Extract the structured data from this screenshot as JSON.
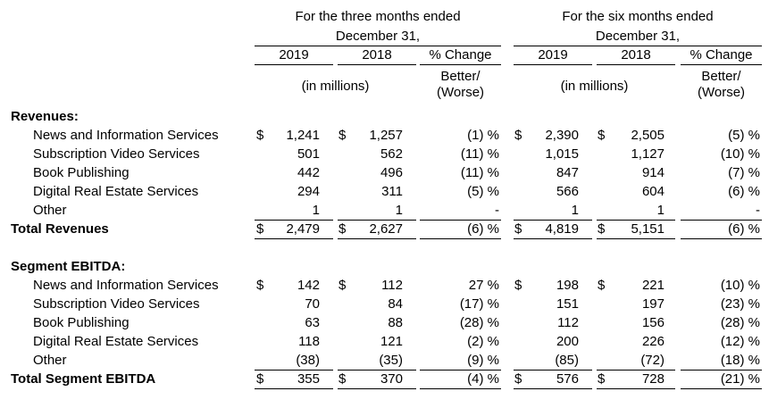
{
  "header": {
    "three_months_line1": "For the three months ended",
    "three_months_line2": "December 31,",
    "six_months_line1": "For the six months ended",
    "six_months_line2": "December 31,",
    "year_2019": "2019",
    "year_2018": "2018",
    "pct_change": "% Change",
    "better": "Better/",
    "worse": "(Worse)",
    "in_millions": "(in millions)"
  },
  "sections": [
    {
      "title": "Revenues:",
      "rows": [
        {
          "label": "News and Information Services",
          "q19d": "$",
          "q19": "1,241",
          "q18d": "$",
          "q18": "1,257",
          "qpct": "(1) %",
          "s19d": "$",
          "s19": "2,390",
          "s18d": "$",
          "s18": "2,505",
          "spct": "(5) %"
        },
        {
          "label": "Subscription Video Services",
          "q19d": "",
          "q19": "501",
          "q18d": "",
          "q18": "562",
          "qpct": "(11) %",
          "s19d": "",
          "s19": "1,015",
          "s18d": "",
          "s18": "1,127",
          "spct": "(10) %"
        },
        {
          "label": "Book Publishing",
          "q19d": "",
          "q19": "442",
          "q18d": "",
          "q18": "496",
          "qpct": "(11) %",
          "s19d": "",
          "s19": "847",
          "s18d": "",
          "s18": "914",
          "spct": "(7) %"
        },
        {
          "label": "Digital Real Estate Services",
          "q19d": "",
          "q19": "294",
          "q18d": "",
          "q18": "311",
          "qpct": "(5) %",
          "s19d": "",
          "s19": "566",
          "s18d": "",
          "s18": "604",
          "spct": "(6) %"
        },
        {
          "label": "Other",
          "q19d": "",
          "q19": "1",
          "q18d": "",
          "q18": "1",
          "qpct": "-",
          "s19d": "",
          "s19": "1",
          "s18d": "",
          "s18": "1",
          "spct": "-"
        }
      ],
      "total": {
        "label": "Total Revenues",
        "q19d": "$",
        "q19": "2,479",
        "q18d": "$",
        "q18": "2,627",
        "qpct": "(6) %",
        "s19d": "$",
        "s19": "4,819",
        "s18d": "$",
        "s18": "5,151",
        "spct": "(6) %"
      }
    },
    {
      "title": "Segment EBITDA:",
      "rows": [
        {
          "label": "News and Information Services",
          "q19d": "$",
          "q19": "142",
          "q18d": "$",
          "q18": "112",
          "qpct": "27 %",
          "s19d": "$",
          "s19": "198",
          "s18d": "$",
          "s18": "221",
          "spct": "(10) %"
        },
        {
          "label": "Subscription Video Services",
          "q19d": "",
          "q19": "70",
          "q18d": "",
          "q18": "84",
          "qpct": "(17) %",
          "s19d": "",
          "s19": "151",
          "s18d": "",
          "s18": "197",
          "spct": "(23) %"
        },
        {
          "label": "Book Publishing",
          "q19d": "",
          "q19": "63",
          "q18d": "",
          "q18": "88",
          "qpct": "(28) %",
          "s19d": "",
          "s19": "112",
          "s18d": "",
          "s18": "156",
          "spct": "(28) %"
        },
        {
          "label": "Digital Real Estate Services",
          "q19d": "",
          "q19": "118",
          "q18d": "",
          "q18": "121",
          "qpct": "(2) %",
          "s19d": "",
          "s19": "200",
          "s18d": "",
          "s18": "226",
          "spct": "(12) %"
        },
        {
          "label": "Other",
          "q19d": "",
          "q19": "(38)",
          "q18d": "",
          "q18": "(35)",
          "qpct": "(9) %",
          "s19d": "",
          "s19": "(85)",
          "s18d": "",
          "s18": "(72)",
          "spct": "(18) %"
        }
      ],
      "total": {
        "label": "Total Segment EBITDA",
        "q19d": "$",
        "q19": "355",
        "q18d": "$",
        "q18": "370",
        "qpct": "(4) %",
        "s19d": "$",
        "s19": "576",
        "s18d": "$",
        "s18": "728",
        "spct": "(21) %"
      }
    }
  ]
}
